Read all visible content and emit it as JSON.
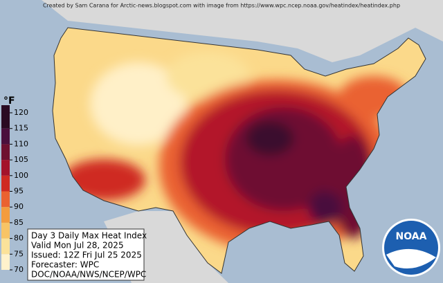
{
  "credit": "Created by Sam Carana for Arctic-news.blogspot.com with image from https://www.wpc.ncep.noaa.gov/heatindex/heatindex.php",
  "legend": {
    "unit": "°F",
    "ticks": [
      120,
      115,
      110,
      105,
      100,
      95,
      90,
      85,
      80,
      75,
      70
    ],
    "colors": [
      "#2a0a22",
      "#4a0f3c",
      "#6e1030",
      "#a3122a",
      "#cf2a22",
      "#ea6230",
      "#f39c3e",
      "#f8c466",
      "#fbe29a",
      "#fff2cc"
    ]
  },
  "info": {
    "lines": [
      "Day 3 Daily Max Heat Index",
      "Valid Mon Jul 28, 2025",
      "Issued: 12Z Fri Jul 25 2025",
      "Forecaster: WPC",
      "DOC/NOAA/NWS/NCEP/WPC"
    ]
  },
  "logo": "NOAA"
}
